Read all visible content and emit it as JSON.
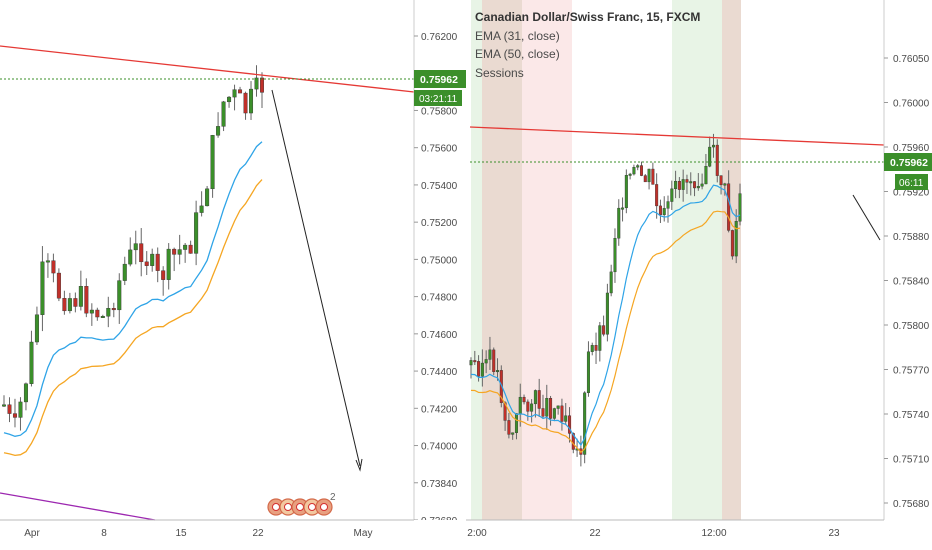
{
  "colors": {
    "up": "#3b8f2a",
    "down": "#c0302a",
    "ema_fast": "#2fa4e7",
    "ema_slow": "#f5a623",
    "trendline": "#e53935",
    "lower_trendline": "#9c27b0",
    "arrow": "#222222",
    "price_tag": "#3b8f2a",
    "dotted_line": "#3b8f2a",
    "axis_text": "#4a4a4a",
    "session_green": "#e6f3e3",
    "session_red": "#fbe5e5",
    "session_brown": "#e8d6cc"
  },
  "legend": {
    "title": "Canadian Dollar/Swiss Franc, 15, FXCM",
    "ema1": "EMA (31, close)",
    "ema2": "EMA (50, close)",
    "sessions": "Sessions"
  },
  "chart_data": [
    {
      "type": "candlestick",
      "timeframe_shown": "daily view (left panel)",
      "y_ticks": [
        "0.76200",
        "0.76000",
        "0.75800",
        "0.75600",
        "0.75400",
        "0.75200",
        "0.75000",
        "0.74800",
        "0.74600",
        "0.74400",
        "0.74200",
        "0.74000",
        "0.73840",
        "0.73680"
      ],
      "x_ticks": [
        "Apr",
        "8",
        "15",
        "22",
        "May"
      ],
      "last_price": "0.75962",
      "countdown": "03:21:11",
      "indicators": [
        "EMA (31, close)",
        "EMA (50, close)"
      ]
    },
    {
      "type": "candlestick",
      "timeframe_shown": "15",
      "y_ticks": [
        "0.76050",
        "0.76000",
        "0.75960",
        "0.75920",
        "0.75880",
        "0.75840",
        "0.75800",
        "0.75770",
        "0.75740",
        "0.75710",
        "0.75680"
      ],
      "x_ticks": [
        "2:00",
        "22",
        "12:00",
        "23"
      ],
      "last_price": "0.75962",
      "countdown": "06:11",
      "indicators": [
        "EMA (31, close)",
        "EMA (50, close)",
        "Sessions"
      ]
    }
  ],
  "watermark_badge": "2"
}
